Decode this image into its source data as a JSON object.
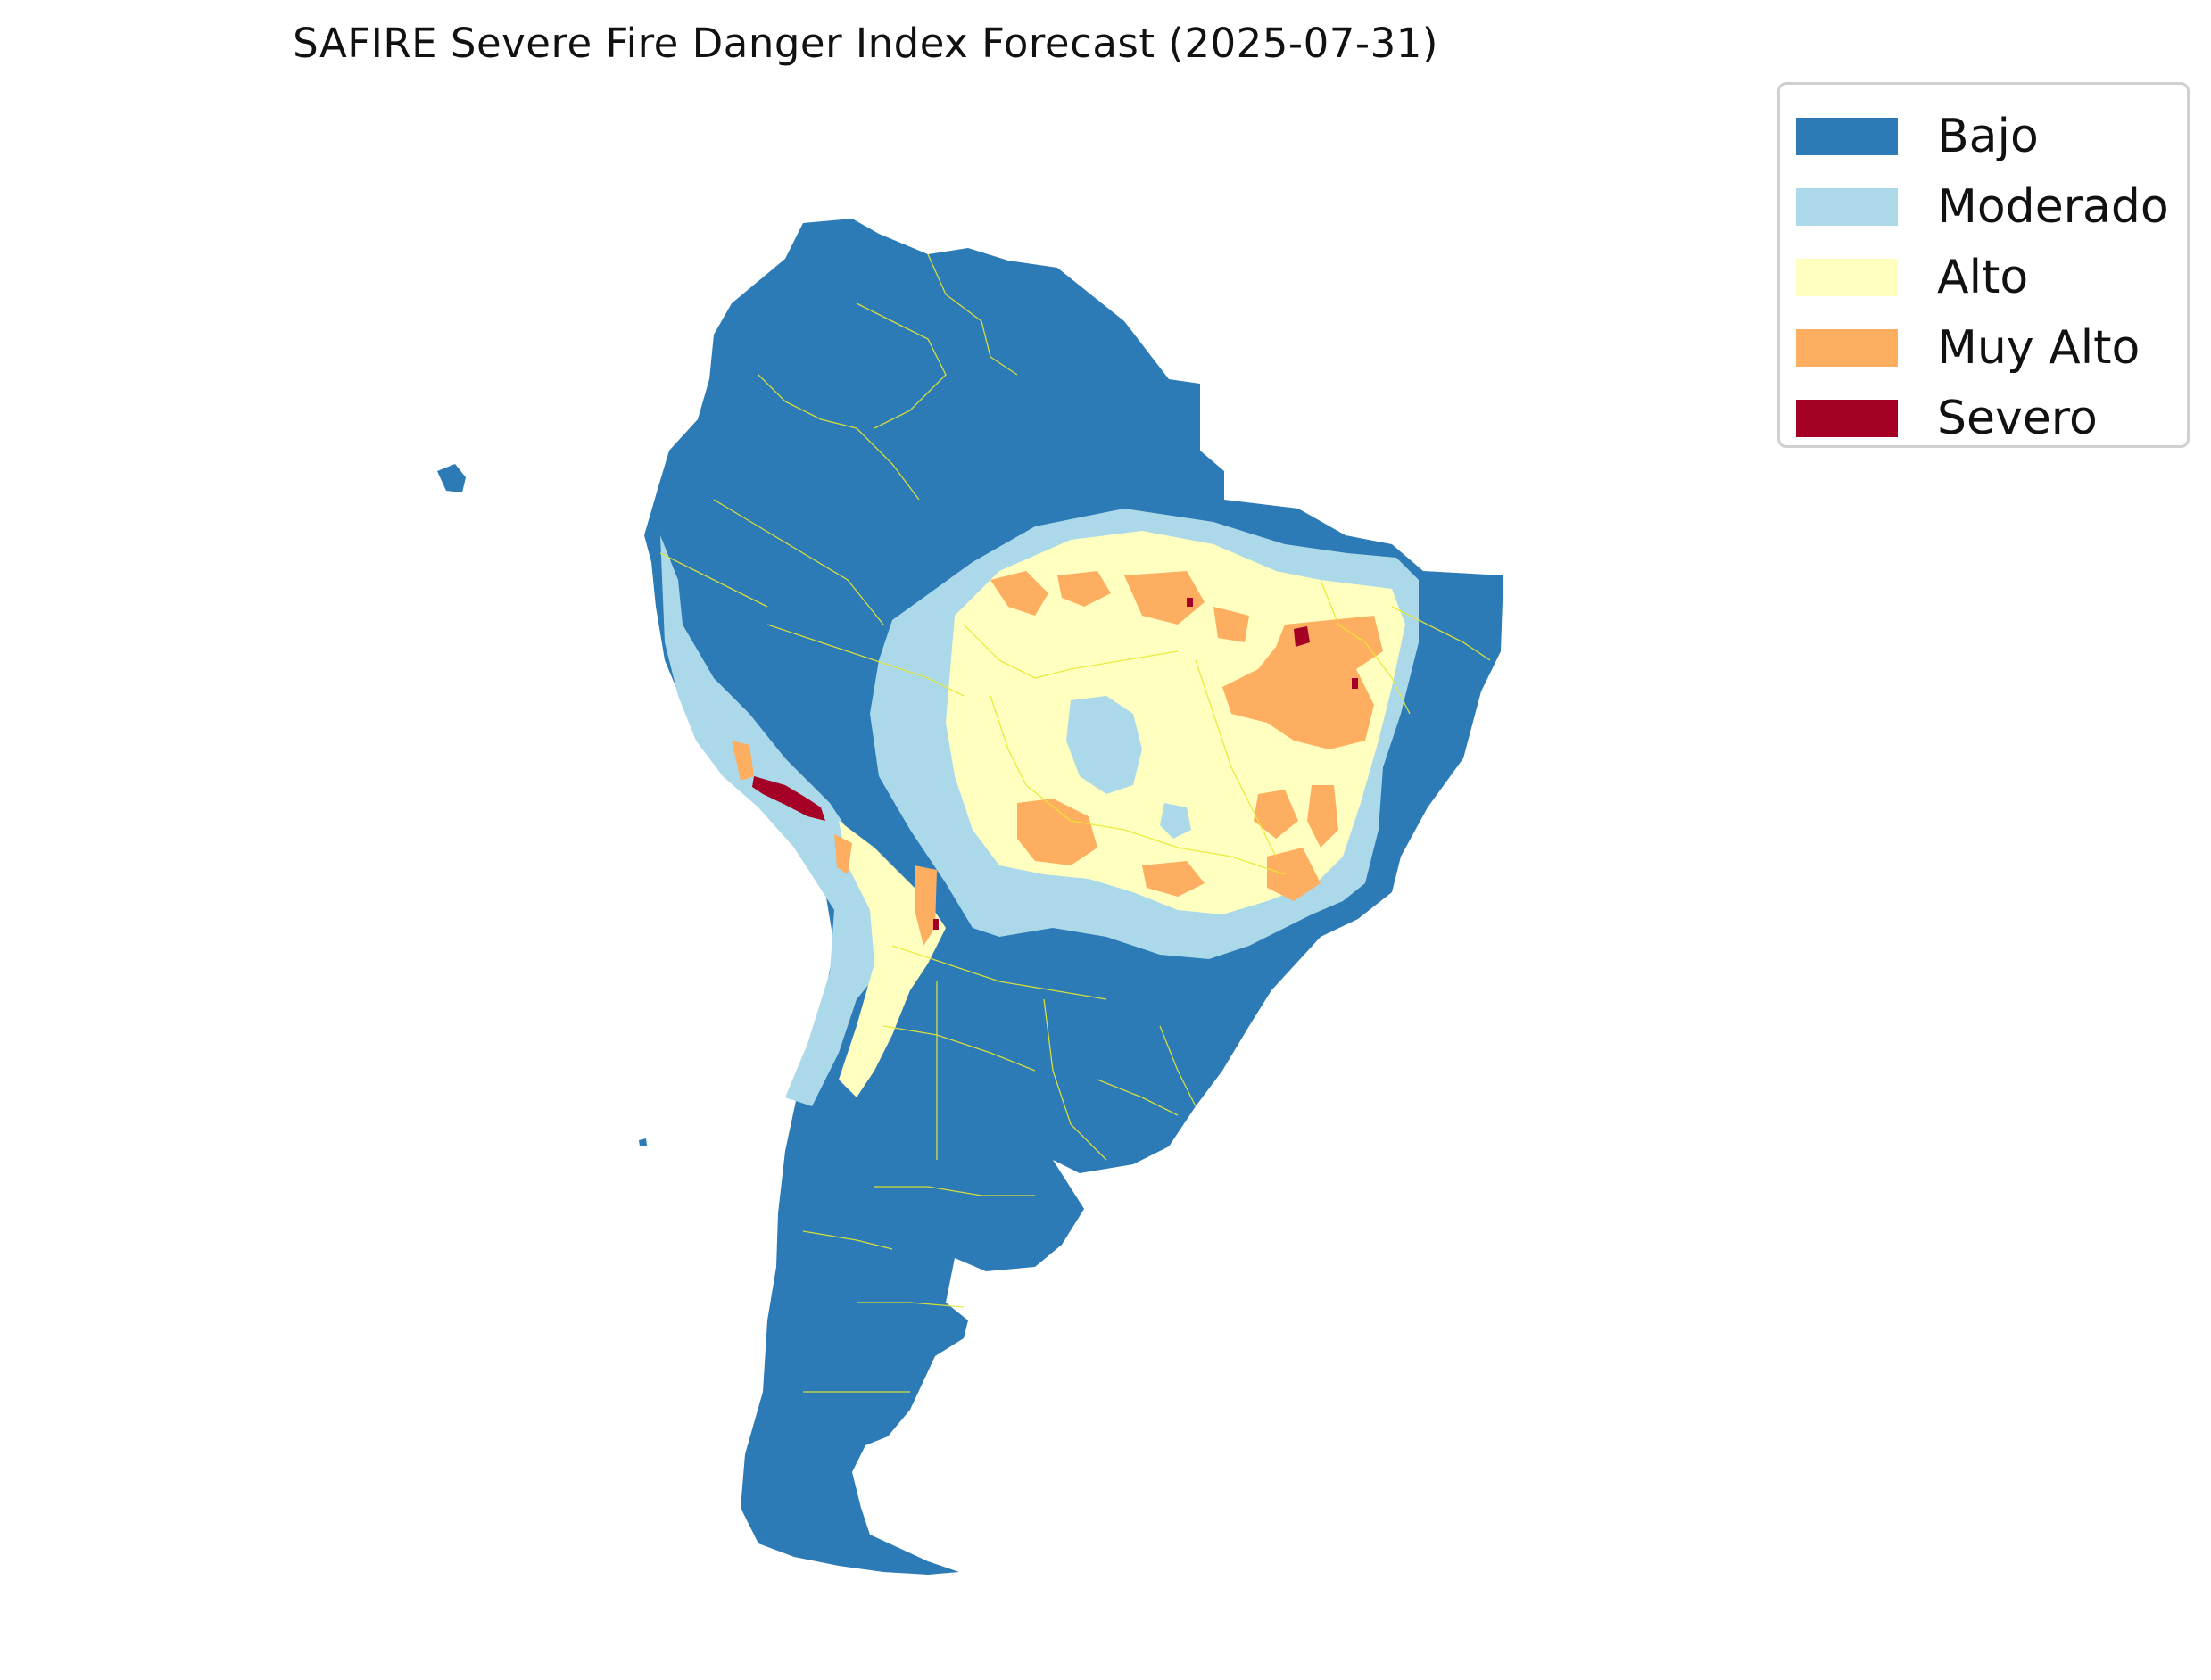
{
  "title": "SAFIRE Severe Fire Danger Index Forecast (2025-07-31)",
  "legend": {
    "items": [
      {
        "label": "Bajo",
        "color": "#2c7bb6"
      },
      {
        "label": "Moderado",
        "color": "#abd9e9"
      },
      {
        "label": "Alto",
        "color": "#ffffbf"
      },
      {
        "label": "Muy Alto",
        "color": "#fdae61"
      },
      {
        "label": "Severo",
        "color": "#a50026"
      }
    ]
  },
  "colors": {
    "boundary": "#e8e832",
    "background": "#ffffff"
  }
}
